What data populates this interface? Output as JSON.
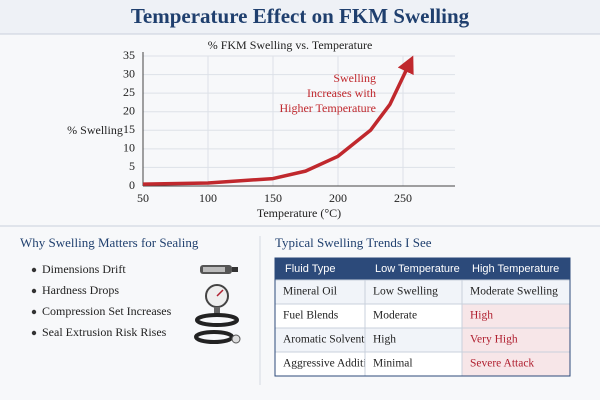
{
  "title": "Temperature Effect on FKM Swelling",
  "chart_data": {
    "type": "line",
    "title": "% FKM Swelling vs. Temperature",
    "xlabel": "Temperature (°C)",
    "ylabel": "% Swelling",
    "x": [
      50,
      100,
      150,
      175,
      200,
      225,
      240,
      255
    ],
    "series": [
      {
        "name": "Swelling",
        "color": "#c0282d",
        "values": [
          0.5,
          0.8,
          2,
          4,
          8,
          15,
          22,
          33
        ]
      }
    ],
    "annotation": [
      "Swelling",
      "Increases with",
      "Higher Temperature"
    ],
    "xlim": [
      50,
      290
    ],
    "xticks": [
      50,
      100,
      150,
      200,
      250
    ],
    "ylim": [
      0,
      35
    ],
    "yticks": [
      0,
      5,
      10,
      15,
      20,
      25,
      30,
      35
    ],
    "grid": true
  },
  "left": {
    "heading": "Why Swelling Matters for Sealing",
    "items": [
      "Dimensions Drift",
      "Hardness Drops",
      "Compression Set Increases",
      "Seal Extrusion Risk Rises"
    ]
  },
  "right": {
    "heading": "Typical Swelling Trends I See",
    "header": [
      "Fluid Type",
      "Low Temperature",
      "High Temperature"
    ],
    "rows": [
      [
        "Mineral Oil",
        "Low Swelling",
        "Moderate Swelling"
      ],
      [
        "Fuel Blends",
        "Moderate",
        "High"
      ],
      [
        "Aromatic Solvents",
        "High",
        "Very High"
      ],
      [
        "Aggressive Additives",
        "Minimal",
        "Severe Attack"
      ]
    ]
  }
}
